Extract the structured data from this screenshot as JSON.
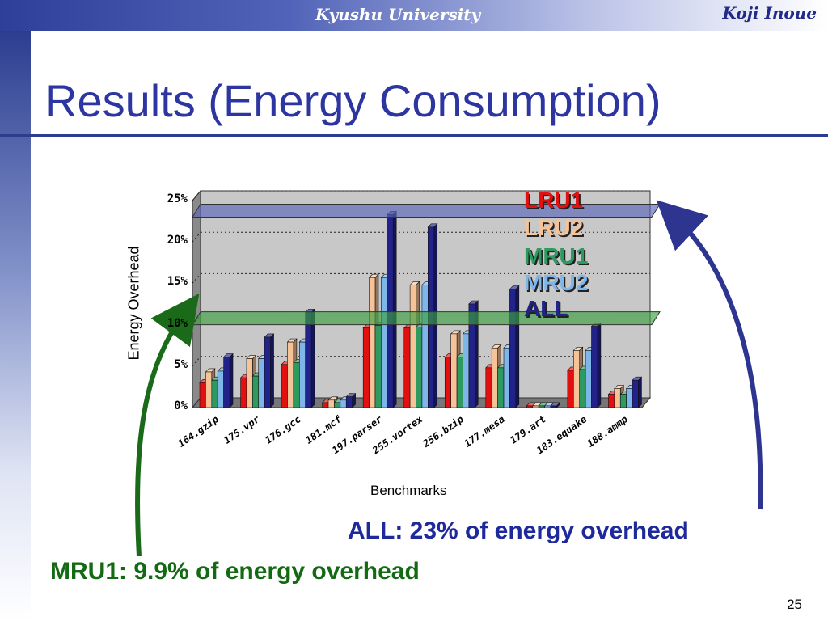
{
  "header": {
    "university": "Kyushu University",
    "author": "Koji Inoue"
  },
  "slide": {
    "title": "Results (Energy Consumption)",
    "page_number": "25"
  },
  "captions": {
    "all": "ALL: 23% of energy overhead",
    "mru1": "MRU1: 9.9% of energy overhead"
  },
  "colors": {
    "LRU1": "#e31010",
    "LRU2": "#f5c397",
    "MRU1": "#2f9a60",
    "MRU2": "#7fb6ea",
    "ALL": "#22238a",
    "highlight_all": "#5a66b8",
    "highlight_mru1": "#3ca040"
  },
  "chart_data": {
    "type": "bar",
    "xlabel": "Benchmarks",
    "ylabel": "Energy Overhead",
    "ylim": [
      0,
      25
    ],
    "ytick_labels": [
      "0%",
      "5%",
      "10%",
      "15%",
      "20%",
      "25%"
    ],
    "categories": [
      "164.gzip",
      "175.vpr",
      "176.gcc",
      "181.mcf",
      "197.parser",
      "255.vortex",
      "256.bzip",
      "177.mesa",
      "179.art",
      "183.equake",
      "188.ammp"
    ],
    "series": [
      {
        "name": "LRU1",
        "values": [
          3.0,
          3.6,
          5.2,
          0.6,
          9.6,
          9.6,
          6.1,
          4.8,
          0.2,
          4.5,
          1.6
        ]
      },
      {
        "name": "LRU2",
        "values": [
          4.3,
          5.9,
          7.9,
          0.9,
          15.7,
          14.8,
          8.9,
          7.2,
          0.2,
          6.9,
          2.3
        ]
      },
      {
        "name": "MRU1",
        "values": [
          3.3,
          3.8,
          5.4,
          0.6,
          9.9,
          9.7,
          6.1,
          4.8,
          0.2,
          4.6,
          1.6
        ]
      },
      {
        "name": "MRU2",
        "values": [
          4.4,
          5.9,
          7.9,
          0.9,
          15.7,
          14.8,
          8.9,
          7.2,
          0.2,
          6.9,
          2.3
        ]
      },
      {
        "name": "ALL",
        "values": [
          6.1,
          8.5,
          11.5,
          1.3,
          23.3,
          21.8,
          12.5,
          14.3,
          0.2,
          9.8,
          3.3
        ]
      }
    ],
    "legend_position": "top-right",
    "grid": true,
    "highlight_bands": [
      10,
      23
    ]
  }
}
